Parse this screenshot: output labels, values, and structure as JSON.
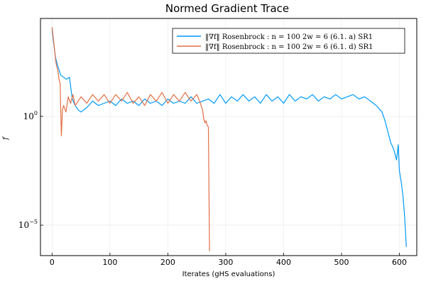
{
  "chart_data": {
    "type": "line",
    "title": "Normed Gradient Trace",
    "xlabel": "Iterates (gHS evaluations)",
    "ylabel": "f",
    "xlim": [
      -20,
      630
    ],
    "ylim_log10": [
      -6.4,
      4.5
    ],
    "yscale": "log",
    "grid": true,
    "legend_position": "top-right",
    "x_ticks": [
      0,
      100,
      200,
      300,
      400,
      500,
      600
    ],
    "y_ticks": [
      {
        "log10": 0,
        "base": "10",
        "exp": "0"
      },
      {
        "log10": -5,
        "base": "10",
        "exp": "−5"
      }
    ],
    "series": [
      {
        "name": "‖∇f‖  Rosenbrock :  n = 100   2w = 6   (6.1. a)   SR1",
        "color": "#009af9",
        "points_log10": [
          [
            0,
            4.0
          ],
          [
            3,
            3.3
          ],
          [
            6,
            2.7
          ],
          [
            10,
            2.3
          ],
          [
            15,
            1.9
          ],
          [
            20,
            1.8
          ],
          [
            25,
            1.7
          ],
          [
            30,
            1.8
          ],
          [
            35,
            0.8
          ],
          [
            40,
            0.5
          ],
          [
            45,
            0.3
          ],
          [
            50,
            0.2
          ],
          [
            60,
            0.4
          ],
          [
            70,
            0.7
          ],
          [
            80,
            0.5
          ],
          [
            90,
            0.6
          ],
          [
            100,
            0.7
          ],
          [
            110,
            0.5
          ],
          [
            120,
            0.8
          ],
          [
            130,
            0.6
          ],
          [
            140,
            0.7
          ],
          [
            150,
            0.5
          ],
          [
            160,
            0.8
          ],
          [
            170,
            0.6
          ],
          [
            180,
            0.7
          ],
          [
            190,
            0.5
          ],
          [
            200,
            0.8
          ],
          [
            210,
            0.6
          ],
          [
            220,
            0.7
          ],
          [
            230,
            0.6
          ],
          [
            240,
            0.9
          ],
          [
            250,
            0.6
          ],
          [
            260,
            0.7
          ],
          [
            270,
            0.8
          ],
          [
            280,
            0.6
          ],
          [
            290,
            1.0
          ],
          [
            300,
            0.6
          ],
          [
            310,
            0.9
          ],
          [
            320,
            0.7
          ],
          [
            330,
            1.0
          ],
          [
            340,
            0.7
          ],
          [
            350,
            0.9
          ],
          [
            360,
            0.6
          ],
          [
            370,
            1.0
          ],
          [
            380,
            0.7
          ],
          [
            390,
            0.9
          ],
          [
            400,
            0.6
          ],
          [
            410,
            1.0
          ],
          [
            420,
            0.7
          ],
          [
            430,
            0.9
          ],
          [
            440,
            0.8
          ],
          [
            450,
            1.0
          ],
          [
            460,
            0.7
          ],
          [
            470,
            0.9
          ],
          [
            480,
            0.8
          ],
          [
            490,
            1.0
          ],
          [
            500,
            0.8
          ],
          [
            510,
            0.9
          ],
          [
            520,
            1.0
          ],
          [
            530,
            0.8
          ],
          [
            540,
            0.9
          ],
          [
            550,
            0.7
          ],
          [
            560,
            0.5
          ],
          [
            570,
            0.2
          ],
          [
            575,
            -0.2
          ],
          [
            580,
            -0.7
          ],
          [
            585,
            -1.2
          ],
          [
            590,
            -1.5
          ],
          [
            595,
            -2.0
          ],
          [
            598,
            -1.3
          ],
          [
            600,
            -2.5
          ],
          [
            603,
            -3.0
          ],
          [
            606,
            -3.6
          ],
          [
            609,
            -4.6
          ],
          [
            612,
            -6.0
          ]
        ]
      },
      {
        "name": "‖∇f‖  Rosenbrock :  n = 100   2w = 6   (6.1. d)   SR1",
        "color": "#e26f46",
        "points_log10": [
          [
            0,
            4.1
          ],
          [
            3,
            3.4
          ],
          [
            6,
            2.6
          ],
          [
            8,
            2.3
          ],
          [
            10,
            2.1
          ],
          [
            12,
            1.7
          ],
          [
            14,
            1.5
          ],
          [
            16,
            -0.9
          ],
          [
            18,
            0.3
          ],
          [
            20,
            0.5
          ],
          [
            24,
            0.2
          ],
          [
            28,
            0.9
          ],
          [
            32,
            0.6
          ],
          [
            36,
            1.0
          ],
          [
            40,
            0.5
          ],
          [
            50,
            0.9
          ],
          [
            60,
            0.6
          ],
          [
            70,
            1.0
          ],
          [
            80,
            0.7
          ],
          [
            90,
            1.0
          ],
          [
            100,
            0.6
          ],
          [
            110,
            1.0
          ],
          [
            120,
            0.7
          ],
          [
            130,
            1.1
          ],
          [
            140,
            0.6
          ],
          [
            150,
            0.9
          ],
          [
            160,
            0.5
          ],
          [
            170,
            1.0
          ],
          [
            180,
            0.7
          ],
          [
            190,
            1.1
          ],
          [
            200,
            0.6
          ],
          [
            210,
            1.0
          ],
          [
            220,
            0.7
          ],
          [
            230,
            1.1
          ],
          [
            240,
            0.7
          ],
          [
            250,
            1.0
          ],
          [
            255,
            0.7
          ],
          [
            260,
            0.3
          ],
          [
            262,
            -0.1
          ],
          [
            264,
            -0.3
          ],
          [
            266,
            -0.2
          ],
          [
            268,
            -0.4
          ],
          [
            270,
            -0.5
          ],
          [
            272,
            -6.2
          ]
        ]
      }
    ]
  }
}
